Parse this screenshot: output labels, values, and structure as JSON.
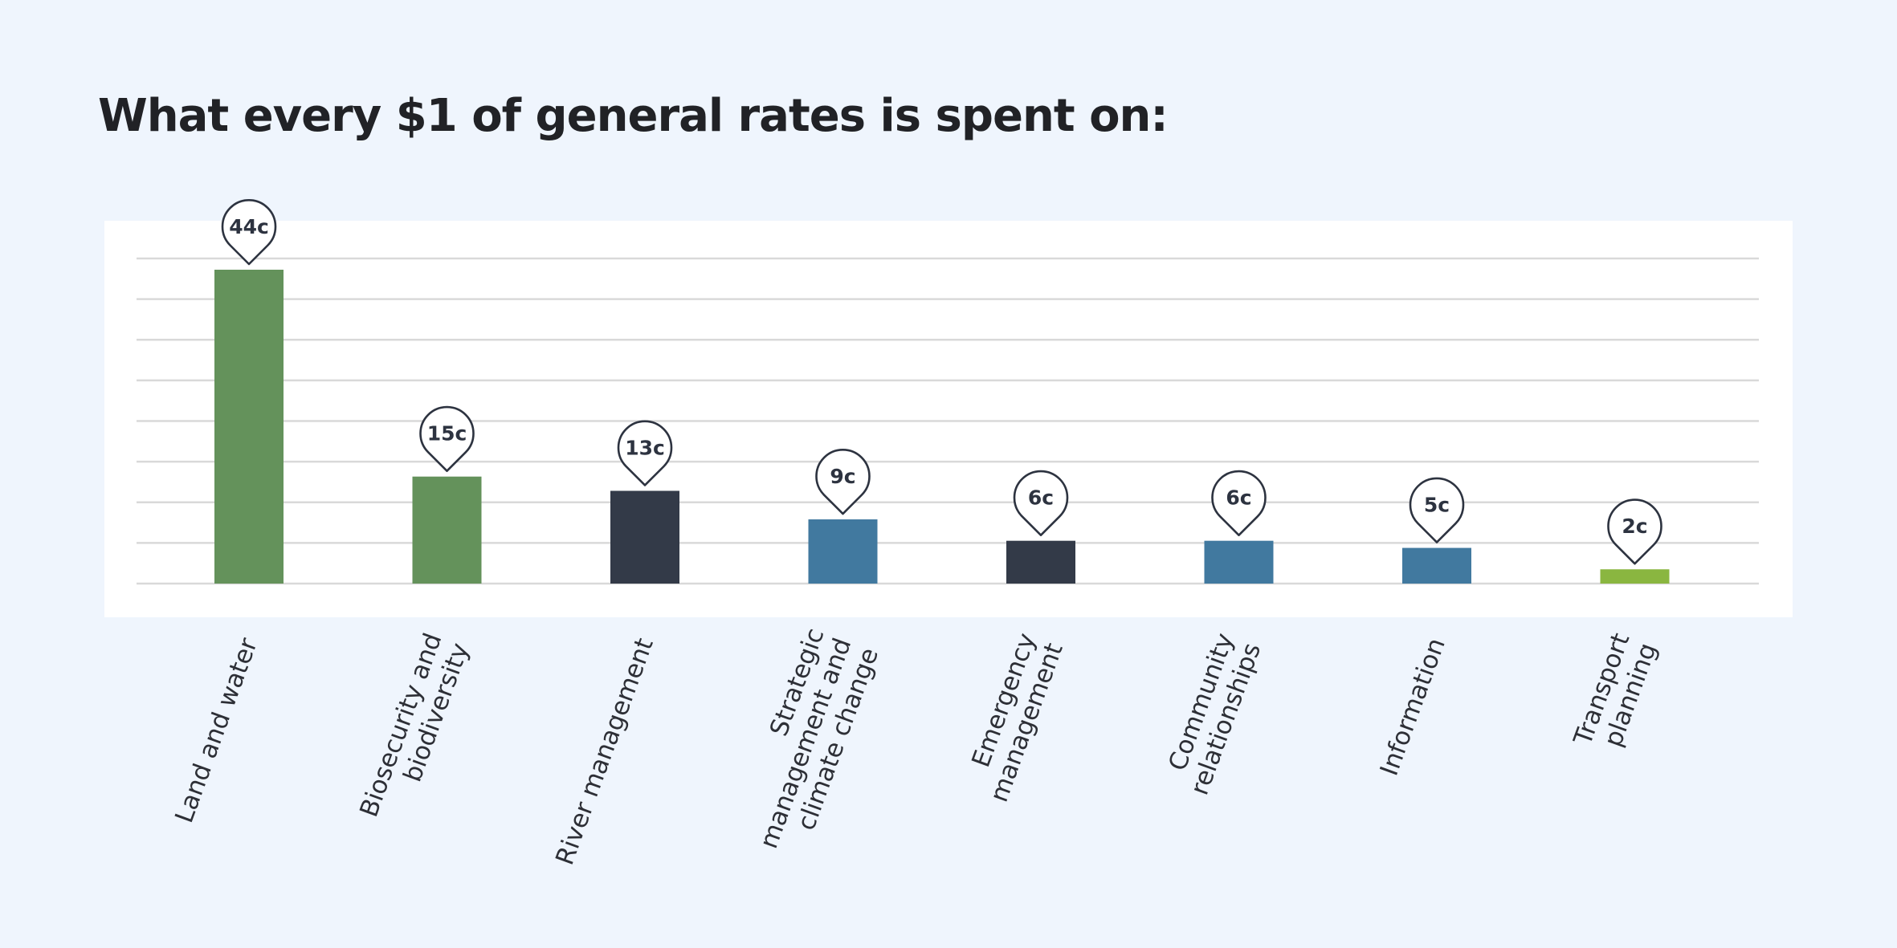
{
  "title": "What every $1 of general rates is spent on:",
  "colors": {
    "background": "#eff5fd",
    "plot_background": "#ffffff",
    "gridline": "#d9d9d9",
    "green": "#64925b",
    "dark": "#333a48",
    "blue": "#41799f",
    "lime": "#8ab640"
  },
  "chart_data": {
    "type": "bar",
    "categories": [
      "Land and water",
      "Biosecurity and biodiversity",
      "River management",
      "Strategic management and climate change",
      "Emergency management",
      "Community relationships",
      "Information",
      "Transport planning"
    ],
    "category_lines": [
      [
        "Land and water"
      ],
      [
        "Biosecurity and",
        "biodiversity"
      ],
      [
        "River management"
      ],
      [
        "Strategic",
        "management and",
        "climate change"
      ],
      [
        "Emergency",
        "management"
      ],
      [
        "Community",
        "relationships"
      ],
      [
        "Information"
      ],
      [
        "Transport",
        "planning"
      ]
    ],
    "values": [
      44,
      15,
      13,
      9,
      6,
      6,
      5,
      2
    ],
    "value_labels": [
      "44c",
      "15c",
      "13c",
      "9c",
      "6c",
      "6c",
      "5c",
      "2c"
    ],
    "bar_colors": [
      "green",
      "green",
      "dark",
      "blue",
      "dark",
      "blue",
      "blue",
      "lime"
    ],
    "unit": "cents",
    "ylim": [
      0,
      44
    ],
    "grid": true,
    "axis_tick_labels": false
  }
}
